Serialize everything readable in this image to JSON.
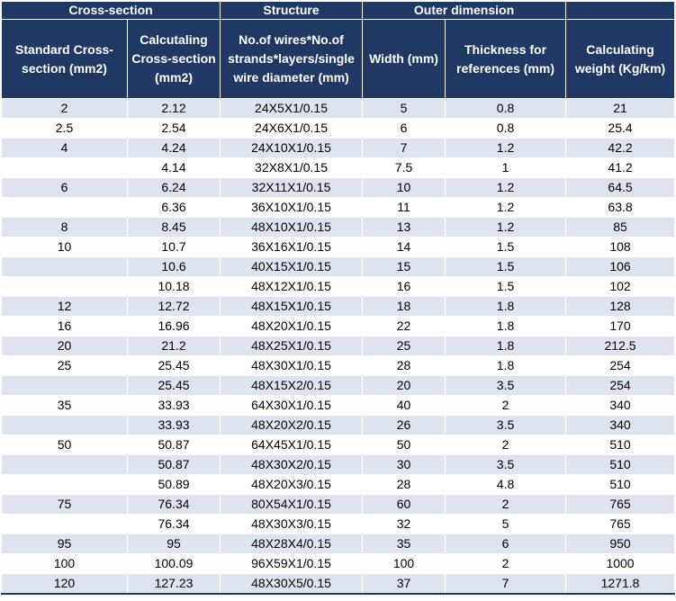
{
  "group_headers": [
    {
      "label": "Cross-section",
      "colspan": 2
    },
    {
      "label": "Structure",
      "colspan": 1
    },
    {
      "label": "Outer dimension",
      "colspan": 2
    },
    {
      "label": "",
      "colspan": 1
    }
  ],
  "column_headers": [
    "Standard Cross-section (mm2)",
    "Calcutaling Cross-section (mm2)",
    "No.of wires*No.of strands*layers/single wire diameter (mm)",
    "Width (mm)",
    "Thickness for references (mm)",
    "Calculating weight (Kg/km)"
  ],
  "rows": [
    [
      "2",
      "2.12",
      "24X5X1/0.15",
      "5",
      "0.8",
      "21"
    ],
    [
      "2.5",
      "2.54",
      "24X6X1/0.15",
      "6",
      "0.8",
      "25.4"
    ],
    [
      "4",
      "4.24",
      "24X10X1/0.15",
      "7",
      "1.2",
      "42.2"
    ],
    [
      "",
      "4.14",
      "32X8X1/0.15",
      "7.5",
      "1",
      "41.2"
    ],
    [
      "6",
      "6.24",
      "32X11X1/0.15",
      "10",
      "1.2",
      "64.5"
    ],
    [
      "",
      "6.36",
      "36X10X1/0.15",
      "11",
      "1.2",
      "63.8"
    ],
    [
      "8",
      "8.45",
      "48X10X1/0.15",
      "13",
      "1.2",
      "85"
    ],
    [
      "10",
      "10.7",
      "36X16X1/0.15",
      "14",
      "1.5",
      "108"
    ],
    [
      "",
      "10.6",
      "40X15X1/0.15",
      "15",
      "1.5",
      "106"
    ],
    [
      "",
      "10.18",
      "48X12X1/0.15",
      "16",
      "1.5",
      "102"
    ],
    [
      "12",
      "12.72",
      "48X15X1/0.15",
      "18",
      "1.8",
      "128"
    ],
    [
      "16",
      "16.96",
      "48X20X1/0.15",
      "22",
      "1.8",
      "170"
    ],
    [
      "20",
      "21.2",
      "48X25X1/0.15",
      "25",
      "1.8",
      "212.5"
    ],
    [
      "25",
      "25.45",
      "48X30X1/0.15",
      "28",
      "1.8",
      "254"
    ],
    [
      "",
      "25.45",
      "48X15X2/0.15",
      "20",
      "3.5",
      "254"
    ],
    [
      "35",
      "33.93",
      "64X30X1/0.15",
      "40",
      "2",
      "340"
    ],
    [
      "",
      "33.93",
      "48X20X2/0.15",
      "26",
      "3.5",
      "340"
    ],
    [
      "50",
      "50.87",
      "64X45X1/0.15",
      "50",
      "2",
      "510"
    ],
    [
      "",
      "50.87",
      "48X30X2/0.15",
      "30",
      "3.5",
      "510"
    ],
    [
      "",
      "50.89",
      "48X20X3/0.15",
      "28",
      "4.8",
      "510"
    ],
    [
      "75",
      "76.34",
      "80X54X1/0.15",
      "60",
      "2",
      "765"
    ],
    [
      "",
      "76.34",
      "48X30X3/0.15",
      "32",
      "5",
      "765"
    ],
    [
      "95",
      "95",
      "48X28X4/0.15",
      "35",
      "6",
      "950"
    ],
    [
      "100",
      "100.09",
      "96X59X1/0.15",
      "100",
      "2",
      "1000"
    ],
    [
      "120",
      "127.23",
      "48X30X5/0.15",
      "37",
      "7",
      "1271.8"
    ]
  ],
  "colors": {
    "header_bg": "#1f3864",
    "header_text": "#ffffff",
    "stripe_odd": "#dde4ef",
    "stripe_even": "#ffffff"
  }
}
